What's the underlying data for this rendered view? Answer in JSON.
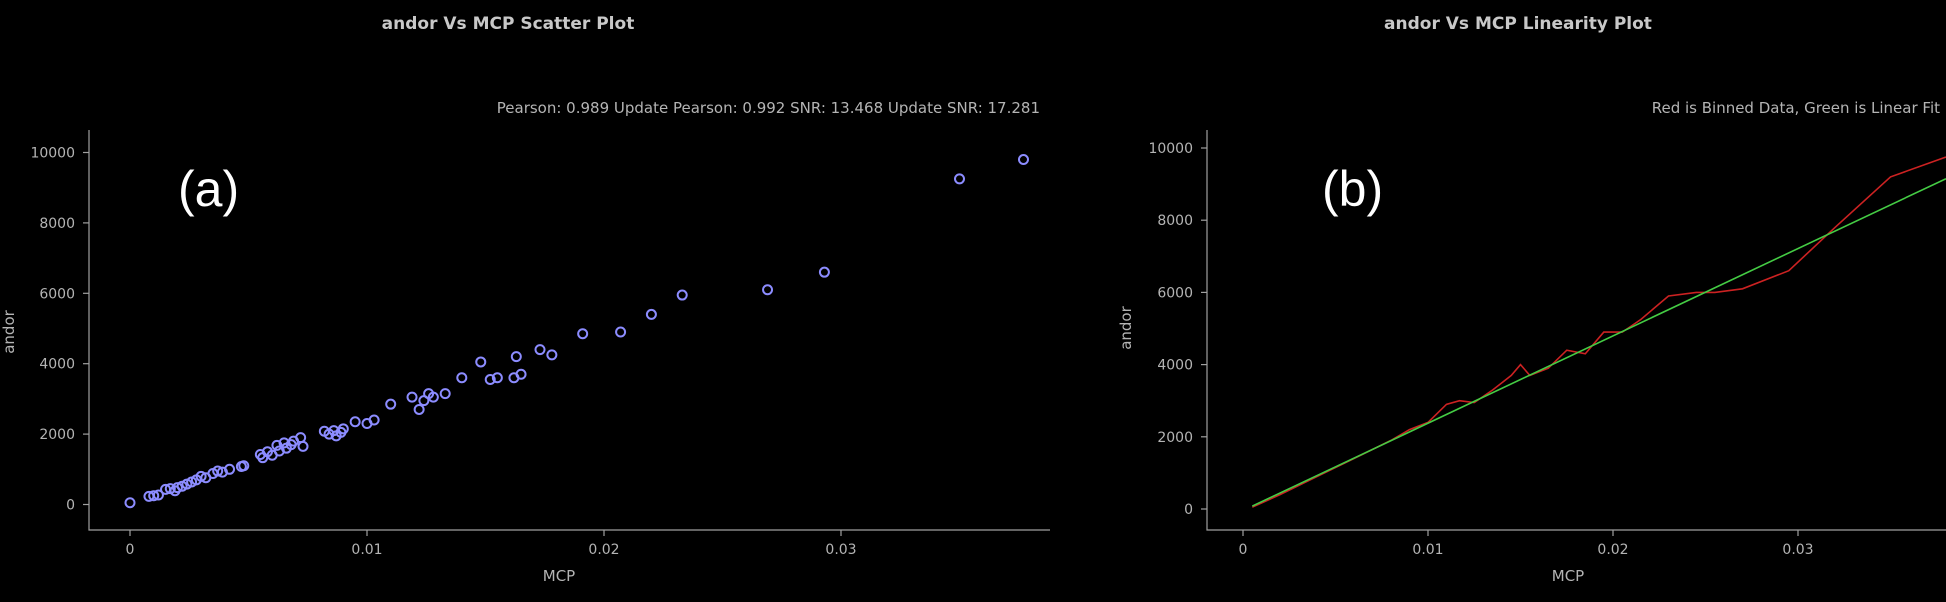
{
  "chart_data": [
    {
      "type": "scatter",
      "panel_label": "(a)",
      "title": "andor Vs MCP Scatter Plot",
      "subtitle": "Pearson: 0.989 Update Pearson: 0.992 SNR: 13.468 Update SNR: 17.281",
      "xlabel": "MCP",
      "ylabel": "andor",
      "xlim": [
        -0.0017,
        0.0395
      ],
      "ylim": [
        -800,
        10600
      ],
      "xticks": [
        0,
        0.01,
        0.02,
        0.03
      ],
      "xtick_labels": [
        "0",
        "0.01",
        "0.02",
        "0.03"
      ],
      "yticks": [
        0,
        2000,
        4000,
        6000,
        8000,
        10000
      ],
      "ytick_labels": [
        "0",
        "2000",
        "4000",
        "6000",
        "8000",
        "10000"
      ],
      "grid": false,
      "marker_color": "#8c8cff",
      "series": [
        {
          "x": [
            0.0,
            0.0008,
            0.001,
            0.0012,
            0.0015,
            0.0017,
            0.0019,
            0.002,
            0.0022,
            0.0024,
            0.0026,
            0.0028,
            0.003,
            0.0032,
            0.0035,
            0.0037,
            0.0039,
            0.0042,
            0.0047,
            0.0048,
            0.0055,
            0.0056,
            0.0058,
            0.006,
            0.0062,
            0.0063,
            0.0065,
            0.0066,
            0.0068,
            0.0069,
            0.0072,
            0.0073,
            0.0082,
            0.0084,
            0.0086,
            0.0087,
            0.0089,
            0.009,
            0.0095,
            0.01,
            0.0103,
            0.011,
            0.0119,
            0.0122,
            0.0124,
            0.0126,
            0.0128,
            0.0133,
            0.014,
            0.0148,
            0.0152,
            0.0155,
            0.0162,
            0.0163,
            0.0165,
            0.0173,
            0.0178,
            0.0191,
            0.0207,
            0.022,
            0.0233,
            0.0269,
            0.0293,
            0.035,
            0.0377
          ],
          "y": [
            50,
            230,
            250,
            270,
            430,
            450,
            390,
            480,
            520,
            580,
            640,
            700,
            800,
            760,
            880,
            950,
            920,
            1000,
            1080,
            1100,
            1420,
            1330,
            1500,
            1400,
            1680,
            1520,
            1750,
            1600,
            1700,
            1800,
            1900,
            1650,
            2080,
            2000,
            2100,
            1950,
            2050,
            2150,
            2350,
            2300,
            2400,
            2850,
            3050,
            2700,
            2950,
            3150,
            3050,
            3150,
            3600,
            4050,
            3550,
            3600,
            3600,
            4200,
            3700,
            4400,
            4250,
            4850,
            4900,
            5400,
            5950,
            6100,
            6600,
            9250,
            9800
          ]
        }
      ]
    },
    {
      "type": "line",
      "panel_label": "(b)",
      "title": "andor Vs MCP Linearity Plot",
      "subtitle": "Red is Binned Data, Green is Linear Fit",
      "xlabel": "MCP",
      "ylabel": "andor",
      "xlim": [
        -0.0017,
        0.0395
      ],
      "ylim": [
        -500,
        10600
      ],
      "xticks": [
        0,
        0.01,
        0.02,
        0.03
      ],
      "xtick_labels": [
        "0",
        "0.01",
        "0.02",
        "0.03"
      ],
      "yticks": [
        0,
        2000,
        4000,
        6000,
        8000,
        10000
      ],
      "ytick_labels": [
        "0",
        "2000",
        "4000",
        "6000",
        "8000",
        "10000"
      ],
      "grid": false,
      "series": [
        {
          "color": "#cc2222",
          "x": [
            0.0005,
            0.002,
            0.004,
            0.006,
            0.008,
            0.009,
            0.01,
            0.011,
            0.0117,
            0.0125,
            0.0135,
            0.0145,
            0.015,
            0.0155,
            0.0165,
            0.0175,
            0.0185,
            0.0195,
            0.0205,
            0.0215,
            0.023,
            0.0245,
            0.0255,
            0.027,
            0.0295,
            0.032,
            0.035,
            0.038
          ],
          "y": [
            50,
            400,
            900,
            1400,
            1900,
            2200,
            2400,
            2900,
            3000,
            2950,
            3300,
            3700,
            4000,
            3700,
            3900,
            4400,
            4300,
            4900,
            4900,
            5250,
            5900,
            6000,
            6000,
            6100,
            6600,
            7800,
            9200,
            9750
          ]
        },
        {
          "color": "#44cc44",
          "x": [
            0.0005,
            0.038
          ],
          "y": [
            80,
            9150
          ]
        }
      ]
    }
  ]
}
